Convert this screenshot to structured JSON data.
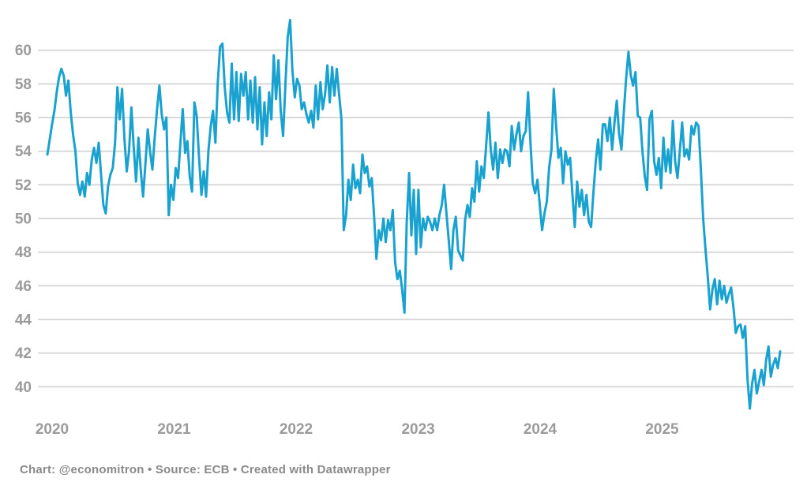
{
  "chart_data": {
    "type": "line",
    "title": "",
    "grid": "horizontal",
    "legend": "none",
    "line_color": "#19a2d0",
    "y_axis": {
      "ticks": [
        40,
        42,
        44,
        46,
        48,
        50,
        52,
        54,
        56,
        58,
        60
      ],
      "range": [
        38.2,
        62.4
      ]
    },
    "x_axis": {
      "ticks": [
        {
          "label": "2020",
          "f": 0.0065
        },
        {
          "label": "2021",
          "f": 0.173
        },
        {
          "label": "2022",
          "f": 0.3394
        },
        {
          "label": "2023",
          "f": 0.506
        },
        {
          "label": "2024",
          "f": 0.6724
        },
        {
          "label": "2025",
          "f": 0.8389
        }
      ]
    },
    "series": [
      {
        "name": "index",
        "cadence": "weekly",
        "values": [
          53.8,
          54.7,
          55.6,
          56.4,
          57.5,
          58.4,
          58.9,
          58.5,
          57.3,
          58.2,
          56.3,
          55.0,
          54.0,
          52.1,
          51.4,
          52.2,
          51.3,
          52.7,
          52.0,
          53.5,
          54.2,
          53.3,
          54.5,
          52.6,
          50.8,
          50.3,
          51.9,
          52.6,
          53.0,
          54.5,
          57.8,
          55.9,
          57.7,
          54.8,
          52.8,
          54.0,
          56.6,
          54.2,
          52.2,
          54.8,
          52.9,
          51.3,
          53.2,
          55.3,
          54.0,
          52.9,
          54.8,
          56.5,
          57.9,
          56.2,
          55.3,
          56.0,
          50.2,
          52.0,
          51.1,
          53.0,
          52.4,
          54.5,
          56.5,
          53.9,
          54.6,
          52.5,
          51.6,
          56.9,
          56.1,
          53.6,
          51.4,
          52.8,
          51.3,
          54.0,
          55.5,
          56.4,
          54.5,
          58.0,
          60.2,
          60.4,
          57.8,
          56.3,
          55.7,
          59.2,
          55.9,
          58.7,
          55.8,
          58.6,
          57.3,
          58.7,
          55.9,
          58.2,
          55.7,
          58.4,
          55.3,
          57.8,
          54.4,
          56.9,
          54.9,
          57.5,
          55.9,
          59.7,
          57.1,
          59.4,
          56.4,
          54.9,
          58.0,
          60.8,
          61.8,
          58.8,
          57.2,
          58.3,
          57.9,
          56.5,
          56.9,
          56.2,
          55.7,
          56.4,
          55.4,
          57.9,
          55.9,
          58.1,
          56.5,
          57.4,
          59.1,
          56.9,
          59.0,
          57.3,
          58.9,
          57.4,
          55.9,
          49.3,
          50.2,
          52.3,
          51.1,
          53.2,
          51.8,
          52.3,
          51.5,
          53.8,
          52.7,
          53.1,
          51.9,
          52.4,
          50.1,
          47.6,
          49.3,
          48.7,
          50.0,
          48.6,
          49.9,
          49.3,
          50.5,
          47.4,
          46.4,
          46.9,
          45.8,
          44.4,
          49.8,
          52.7,
          49.0,
          51.7,
          47.9,
          51.7,
          48.3,
          50.0,
          49.3,
          50.1,
          49.8,
          49.3,
          50.0,
          49.3,
          50.2,
          50.8,
          52.0,
          50.3,
          48.7,
          47.0,
          49.3,
          50.1,
          48.1,
          47.8,
          47.5,
          49.9,
          50.8,
          50.1,
          51.8,
          51.0,
          53.4,
          51.6,
          53.1,
          52.4,
          54.3,
          56.3,
          54.1,
          52.9,
          54.5,
          52.4,
          54.1,
          53.3,
          54.1,
          54.0,
          53.1,
          55.5,
          54.1,
          55.0,
          55.7,
          54.0,
          54.9,
          55.2,
          57.5,
          54.5,
          52.1,
          51.5,
          52.3,
          50.8,
          49.3,
          50.3,
          51.0,
          53.0,
          54.1,
          57.7,
          55.5,
          53.6,
          54.2,
          52.1,
          54.0,
          53.2,
          53.6,
          51.4,
          49.5,
          52.2,
          50.7,
          51.7,
          50.2,
          51.4,
          49.8,
          49.5,
          51.6,
          53.4,
          54.7,
          52.9,
          55.6,
          55.6,
          54.6,
          56.0,
          54.1,
          55.7,
          57.0,
          55.0,
          54.1,
          56.3,
          58.3,
          59.9,
          58.5,
          57.9,
          58.7,
          56.1,
          56.0,
          54.0,
          52.5,
          51.7,
          55.9,
          56.4,
          53.4,
          52.6,
          53.6,
          51.8,
          54.8,
          52.8,
          54.1,
          52.7,
          55.8,
          53.4,
          52.4,
          54.0,
          55.7,
          53.7,
          54.1,
          53.5,
          55.5,
          55.0,
          55.7,
          55.5,
          53.0,
          50.0,
          48.2,
          46.5,
          44.6,
          45.8,
          46.4,
          44.9,
          46.3,
          45.2,
          46.0,
          45.0,
          45.5,
          45.9,
          44.7,
          43.2,
          43.6,
          43.7,
          42.9,
          43.6,
          40.5,
          38.7,
          40.2,
          41.0,
          39.6,
          40.3,
          41.0,
          40.1,
          41.6,
          42.4,
          40.6,
          41.3,
          41.7,
          41.1,
          42.1
        ]
      }
    ]
  },
  "footer": {
    "text": "Chart: @economitron • Source: ECB • Created with Datawrapper"
  },
  "colors": {
    "line": "#19a2d0",
    "gridline": "#d9d9d9",
    "tick_label": "#9b9b9b",
    "footer_text": "#8a8a8a",
    "background": "#ffffff"
  }
}
